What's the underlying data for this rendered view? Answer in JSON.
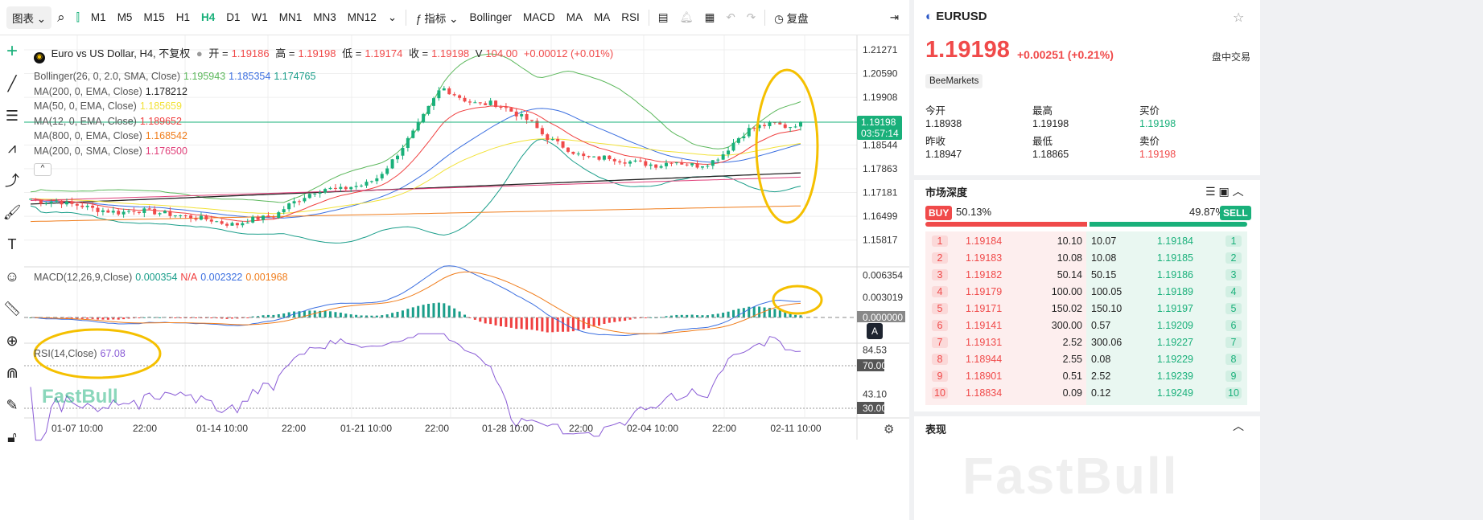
{
  "toolbar": {
    "chart_type": "图表",
    "timeframes": [
      "M1",
      "M5",
      "M15",
      "H1",
      "H4",
      "D1",
      "W1",
      "MN1",
      "MN3",
      "MN12"
    ],
    "active_timeframe": "H4",
    "indicators_label": "指标",
    "indicator_buttons": [
      "Bollinger",
      "MACD",
      "MA",
      "MA",
      "RSI"
    ],
    "replay_label": "复盘"
  },
  "legend": {
    "title": "Euro vs US Dollar, H4, 不复权",
    "open_label": "开 =",
    "open": "1.19186",
    "high_label": "高 =",
    "high": "1.19198",
    "low_label": "低 =",
    "low": "1.19174",
    "close_label": "收 =",
    "close": "1.19198",
    "volume_label": "V",
    "volume": "104.00",
    "change": "+0.00012 (+0.01%)",
    "indicators": [
      {
        "label": "Bollinger(26, 0, 2.0, SMA, Close)",
        "values": [
          "1.195943",
          "1.185354",
          "1.174765"
        ],
        "colors": [
          "#5cb85c",
          "#3b6fe0",
          "#1a9e8a"
        ]
      },
      {
        "label": "MA(200, 0, EMA, Close)",
        "values": [
          "1.178212"
        ],
        "colors": [
          "#222222"
        ]
      },
      {
        "label": "MA(50, 0, EMA, Close)",
        "values": [
          "1.185659"
        ],
        "colors": [
          "#f2e23a"
        ]
      },
      {
        "label": "MA(12, 0, EMA, Close)",
        "values": [
          "1.189652"
        ],
        "colors": [
          "#f04040"
        ]
      },
      {
        "label": "MA(800, 0, EMA, Close)",
        "values": [
          "1.168542"
        ],
        "colors": [
          "#f07d1c"
        ]
      },
      {
        "label": "MA(200, 0, SMA, Close)",
        "values": [
          "1.176500"
        ],
        "colors": [
          "#e0407a"
        ]
      }
    ]
  },
  "macd_legend": {
    "label": "MACD(12,26,9,Close)",
    "values": [
      "0.000354",
      "N/A",
      "0.002322",
      "0.001968"
    ],
    "colors": [
      "#1a9e8a",
      "#f04040",
      "#3b6fe0",
      "#f07d1c"
    ]
  },
  "rsi_legend": {
    "label": "RSI(14,Close)",
    "value": "67.08"
  },
  "price_axis": [
    "1.21271",
    "1.20590",
    "1.19908",
    "1.18544",
    "1.17863",
    "1.17181",
    "1.16499",
    "1.15817"
  ],
  "current_price": "1.19198",
  "countdown": "03:57:14",
  "macd_axis": [
    "0.006354",
    "0.003019",
    "0.000000"
  ],
  "rsi_axis": [
    "84.53",
    "70.00",
    "43.10",
    "30.00"
  ],
  "time_axis": [
    "01-07 10:00",
    "22:00",
    "01-14 10:00",
    "22:00",
    "01-21 10:00",
    "22:00",
    "01-28 10:00",
    "22:00",
    "02-04 10:00",
    "22:00",
    "02-11 10:00"
  ],
  "auto_label": "A",
  "watermark": "FastBull",
  "chart_data": {
    "type": "candlestick",
    "symbol": "EURUSD",
    "timeframe": "H4",
    "ylim": [
      1.155,
      1.2135
    ],
    "approx_closes": [
      1.17,
      1.169,
      1.1695,
      1.1685,
      1.168,
      1.167,
      1.1665,
      1.166,
      1.1668,
      1.1665,
      1.166,
      1.1655,
      1.165,
      1.1645,
      1.164,
      1.163,
      1.1625,
      1.164,
      1.1645,
      1.165,
      1.168,
      1.17,
      1.172,
      1.173,
      1.1725,
      1.1735,
      1.174,
      1.176,
      1.18,
      1.185,
      1.19,
      1.196,
      1.202,
      1.2,
      1.198,
      1.197,
      1.1975,
      1.196,
      1.194,
      1.192,
      1.188,
      1.186,
      1.184,
      1.182,
      1.1815,
      1.182,
      1.181,
      1.1805,
      1.18,
      1.1795,
      1.181,
      1.18,
      1.1795,
      1.1805,
      1.183,
      1.187,
      1.19,
      1.191,
      1.1915,
      1.1905,
      1.192
    ]
  },
  "panel": {
    "symbol": "EURUSD",
    "price": "1.19198",
    "change": "+0.00251",
    "change_pct": "(+0.21%)",
    "session": "盘中交易",
    "broker": "BeeMarkets",
    "stats": [
      {
        "label": "今开",
        "value": "1.18938"
      },
      {
        "label": "最高",
        "value": "1.19198"
      },
      {
        "label": "买价",
        "value": "1.19198",
        "color": "#19b07a"
      },
      {
        "label": "昨收",
        "value": "1.18947"
      },
      {
        "label": "最低",
        "value": "1.18865"
      },
      {
        "label": "卖价",
        "value": "1.19198",
        "color": "#f04a4a"
      }
    ],
    "depth_title": "市场深度",
    "buy_label": "BUY",
    "buy_pct": "50.13%",
    "sell_pct": "49.87%",
    "sell_label": "SELL",
    "buy_ratio": 50.13,
    "depth": [
      [
        "1",
        "1.19184",
        "10.10",
        "10.07",
        "1.19184",
        "1"
      ],
      [
        "2",
        "1.19183",
        "10.08",
        "10.08",
        "1.19185",
        "2"
      ],
      [
        "3",
        "1.19182",
        "50.14",
        "50.15",
        "1.19186",
        "3"
      ],
      [
        "4",
        "1.19179",
        "100.00",
        "100.05",
        "1.19189",
        "4"
      ],
      [
        "5",
        "1.19171",
        "150.02",
        "150.10",
        "1.19197",
        "5"
      ],
      [
        "6",
        "1.19141",
        "300.00",
        "0.57",
        "1.19209",
        "6"
      ],
      [
        "7",
        "1.19131",
        "2.52",
        "300.06",
        "1.19227",
        "7"
      ],
      [
        "8",
        "1.18944",
        "2.55",
        "0.08",
        "1.19229",
        "8"
      ],
      [
        "9",
        "1.18901",
        "0.51",
        "2.52",
        "1.19239",
        "9"
      ],
      [
        "10",
        "1.18834",
        "0.09",
        "0.12",
        "1.19249",
        "10"
      ]
    ],
    "performance_title": "表现"
  },
  "colors": {
    "up": "#19b07a",
    "down": "#f04a4a",
    "annotation": "#f5c000"
  }
}
